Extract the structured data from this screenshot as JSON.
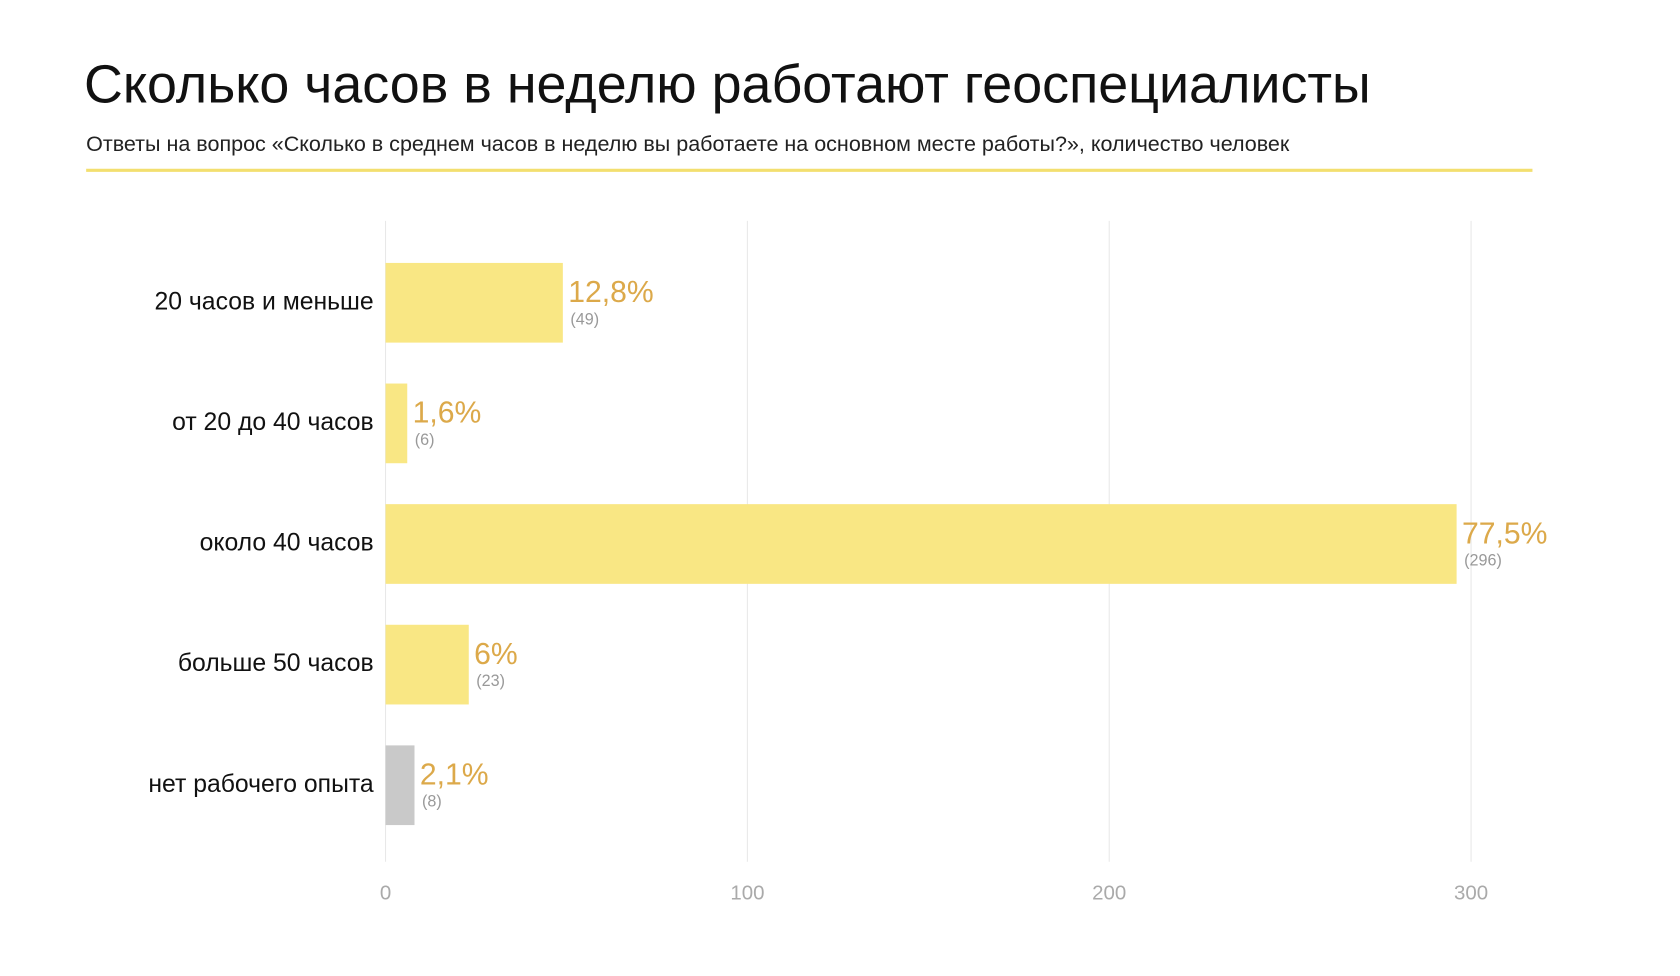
{
  "chart_data": {
    "type": "bar",
    "orientation": "horizontal",
    "title": "Сколько часов в неделю работают геоспециалисты",
    "subtitle": "Ответы на вопрос «Сколько в среднем часов в неделю вы работаете на основном месте работы?», количество человек",
    "categories": [
      "20 часов и меньше",
      "от 20 до 40 часов",
      "около 40 часов",
      "больше 50 часов",
      "нет рабочего опыта"
    ],
    "values": [
      49,
      6,
      296,
      23,
      8
    ],
    "value_labels": [
      "(49)",
      "(6)",
      "(296)",
      "(23)",
      "(8)"
    ],
    "percent_labels": [
      "12,8%",
      "1,6%",
      "77,5%",
      "6%",
      "2,1%"
    ],
    "colors": [
      "#f9e784",
      "#f9e784",
      "#f9e784",
      "#f9e784",
      "#c9c9c9"
    ],
    "xlim": [
      0,
      300
    ],
    "xticks": [
      0,
      100,
      200,
      300
    ],
    "grid": true
  }
}
